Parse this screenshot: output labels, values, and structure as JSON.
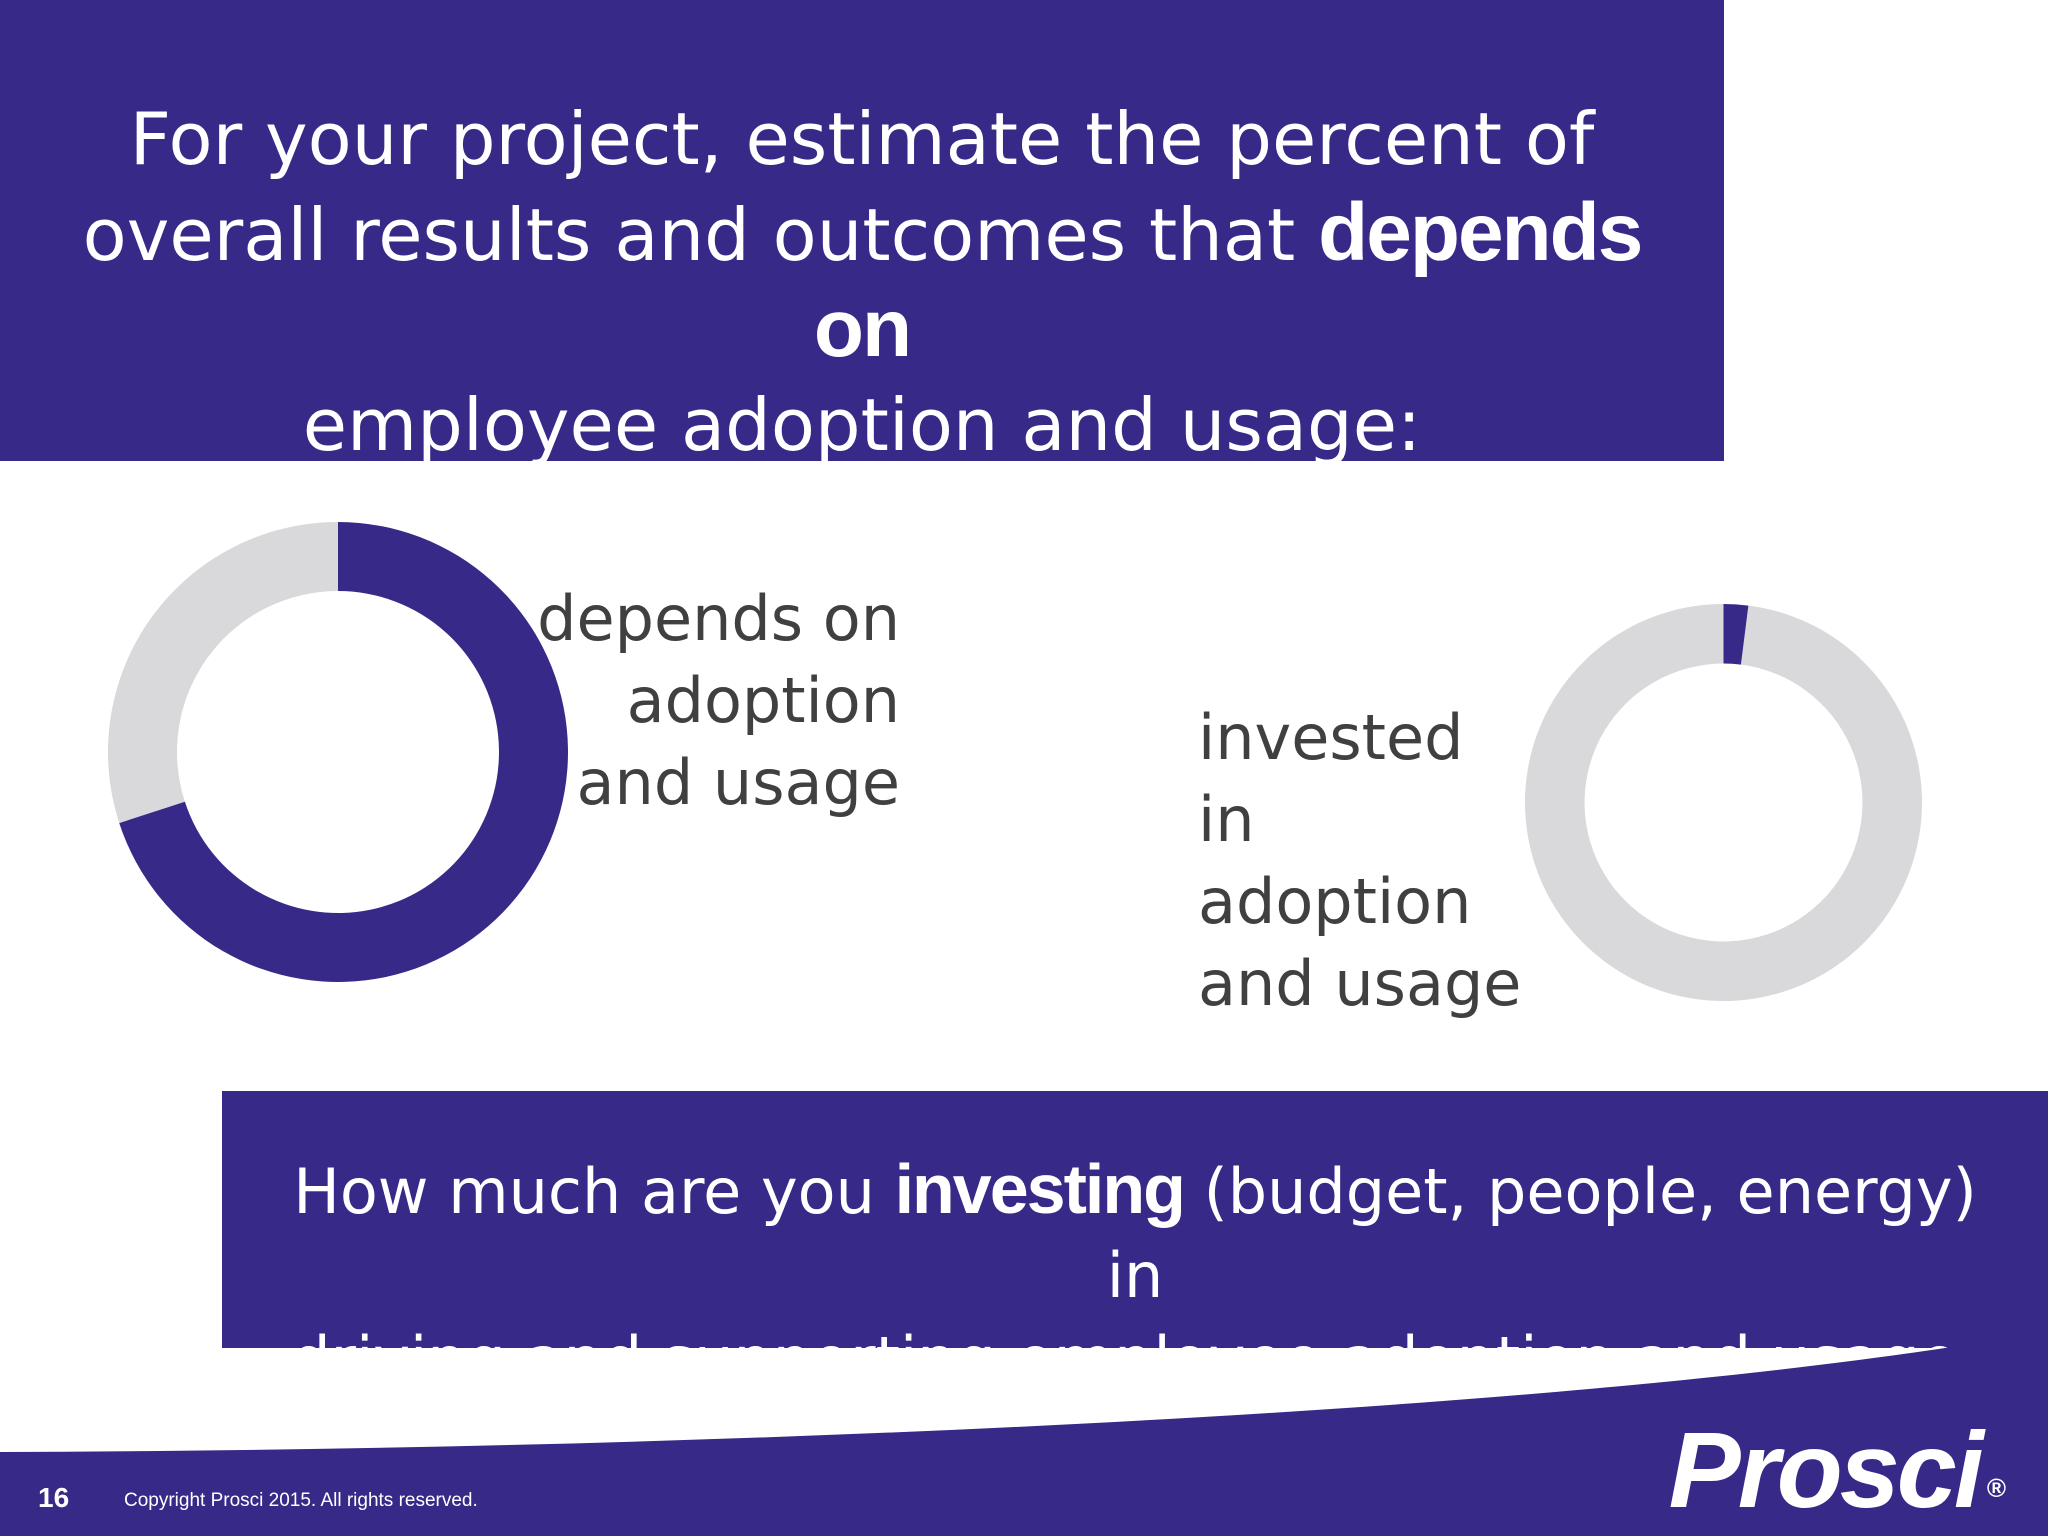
{
  "colors": {
    "accent": "#372987",
    "track": "#d9d9db",
    "text": "#404040",
    "white": "#ffffff"
  },
  "top_banner": {
    "line_1": "For your project, estimate the percent of",
    "line_2_prefix": "overall results and outcomes that ",
    "line_2_emphasis": "depends on",
    "line_3": "employee adoption and usage:"
  },
  "bottom_banner": {
    "line_1_prefix": "How much are you ",
    "line_1_emphasis": "investing",
    "line_1_suffix": " (budget, people, energy) in",
    "line_2": "driving and supporting employee adoption and usage:"
  },
  "chart_data": [
    {
      "type": "pie",
      "style": "donut",
      "labels": [
        "depends on adoption and usage"
      ],
      "caption_lines": [
        "depends on",
        "adoption",
        "and usage"
      ],
      "values": [
        0.7
      ],
      "remainder": 0.3
    },
    {
      "type": "pie",
      "style": "donut",
      "labels": [
        "invested in adoption and usage"
      ],
      "caption_lines": [
        "invested in",
        "adoption",
        "and usage"
      ],
      "values": [
        0.02
      ],
      "remainder": 0.98
    }
  ],
  "footer": {
    "page_number": "16",
    "copyright": "Copyright Prosci 2015. All rights reserved.",
    "logo_text": "Prosci",
    "logo_mark": "®"
  }
}
